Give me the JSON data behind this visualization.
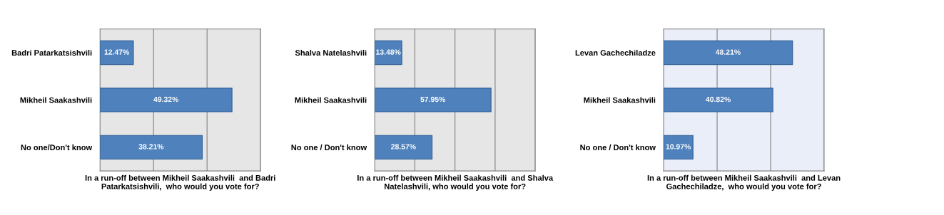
{
  "chart_data": [
    {
      "type": "bar",
      "orientation": "horizontal",
      "categories": [
        "Badri Patarkatsishvili",
        "Mikheil Saakashvili",
        "No one/Don't know"
      ],
      "values": [
        12.47,
        49.32,
        38.21
      ],
      "value_labels": [
        "12.47%",
        "49.32%",
        "38.21%"
      ],
      "color": "#4f81bd",
      "xlabel": "In a run-off between Mikheil Saakashvili  and Badri\nPatarkatsishvili,  who would you vote for?",
      "xlim": [
        0,
        60
      ],
      "xticks": [
        {
          "value": 20,
          "label": null
        },
        {
          "value": 40,
          "label": null
        },
        {
          "value": 60,
          "label": null
        }
      ],
      "grid": "x",
      "tick_labels": "y"
    },
    {
      "type": "bar",
      "orientation": "horizontal",
      "categories": [
        "Shalva Natelashvili",
        "Mikheil Saakashvili",
        "No one / Don't know"
      ],
      "values": [
        13.48,
        57.95,
        28.57
      ],
      "value_labels": [
        "13.48%",
        "57.95%",
        "28.57%"
      ],
      "color": "#4f81bd",
      "xlabel": "In a run-off between Mikheil Saakashvili  and Shalva\nNatelashvili, who would you vote for?",
      "xlim": [
        0,
        80
      ],
      "xticks": [
        {
          "value": 20,
          "label": null
        },
        {
          "value": 40,
          "label": null
        },
        {
          "value": 60,
          "label": null
        },
        {
          "value": 80,
          "label": null
        }
      ],
      "grid": "x",
      "tick_labels": "y"
    },
    {
      "type": "bar",
      "orientation": "horizontal",
      "categories": [
        "Levan Gachechiladze",
        "Mikheil Saakashvili",
        "No one / Don't know"
      ],
      "values": [
        48.21,
        40.82,
        10.97
      ],
      "value_labels": [
        "48.21%",
        "40.82%",
        "10.97%"
      ],
      "color": "#4f81bd",
      "xlabel": "In a run-off between Mikheil Saakashvili  and Levan\nGachechiladze,  who would you vote for?",
      "xlim": [
        0,
        60
      ],
      "xticks": [
        {
          "value": 20,
          "label": null
        },
        {
          "value": 40,
          "label": null
        },
        {
          "value": 60,
          "label": null
        }
      ],
      "grid": "x",
      "tick_labels": "y"
    }
  ]
}
